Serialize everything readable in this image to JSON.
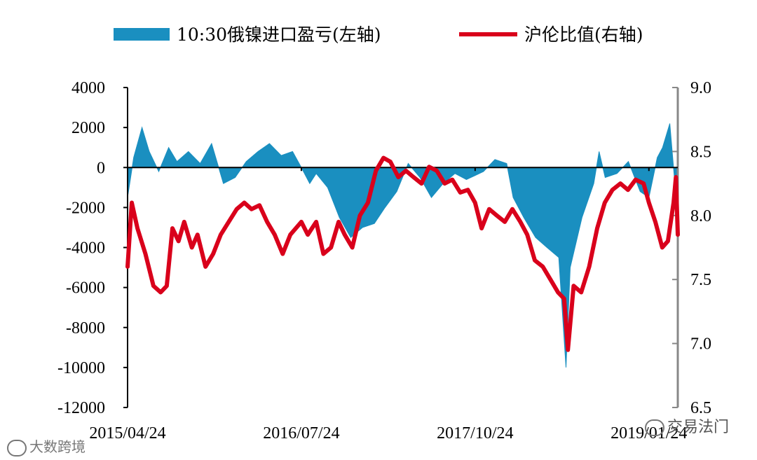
{
  "chart_data": {
    "type": "area+line",
    "x_tick_labels": [
      "2015/04/24",
      "2016/07/24",
      "2017/10/24",
      "2019/01/24"
    ],
    "y_left_ticks": [
      "4000",
      "2000",
      "0",
      "-2000",
      "-4000",
      "-6000",
      "-8000",
      "-10000",
      "-12000"
    ],
    "y_right_ticks": [
      "9.0",
      "8.5",
      "8.0",
      "7.5",
      "7.0",
      "6.5"
    ],
    "y_left_range": [
      -12000,
      4000
    ],
    "y_right_range": [
      6.5,
      9.0
    ],
    "x_range": [
      "2015/04/24",
      "2019/04/10"
    ],
    "legend_position": "top",
    "series": [
      {
        "name": "10:30俄镍进口盈亏(左轴)",
        "axis": "left",
        "style": "area",
        "color": "#1a8fc0",
        "points": [
          [
            "2015/04/24",
            -1500
          ],
          [
            "2015/05/10",
            500
          ],
          [
            "2015/06/01",
            2000
          ],
          [
            "2015/06/20",
            800
          ],
          [
            "2015/07/15",
            -200
          ],
          [
            "2015/08/10",
            1000
          ],
          [
            "2015/09/01",
            300
          ],
          [
            "2015/10/01",
            800
          ],
          [
            "2015/11/01",
            200
          ],
          [
            "2015/12/01",
            1200
          ],
          [
            "2016/01/01",
            -800
          ],
          [
            "2016/02/01",
            -500
          ],
          [
            "2016/03/01",
            300
          ],
          [
            "2016/04/01",
            800
          ],
          [
            "2016/05/01",
            1200
          ],
          [
            "2016/06/01",
            600
          ],
          [
            "2016/07/01",
            800
          ],
          [
            "2016/07/24",
            0
          ],
          [
            "2016/08/15",
            -800
          ],
          [
            "2016/09/01",
            -300
          ],
          [
            "2016/10/01",
            -1000
          ],
          [
            "2016/11/01",
            -2500
          ],
          [
            "2016/12/01",
            -3500
          ],
          [
            "2017/01/01",
            -3000
          ],
          [
            "2017/02/01",
            -2800
          ],
          [
            "2017/03/01",
            -2000
          ],
          [
            "2017/04/01",
            -1200
          ],
          [
            "2017/05/01",
            200
          ],
          [
            "2017/06/01",
            -500
          ],
          [
            "2017/07/01",
            -1500
          ],
          [
            "2017/08/01",
            -800
          ],
          [
            "2017/09/01",
            -300
          ],
          [
            "2017/10/01",
            -600
          ],
          [
            "2017/10/24",
            -400
          ],
          [
            "2017/11/15",
            -200
          ],
          [
            "2017/12/15",
            400
          ],
          [
            "2018/01/15",
            200
          ],
          [
            "2018/02/01",
            -1500
          ],
          [
            "2018/03/01",
            -2500
          ],
          [
            "2018/04/01",
            -3500
          ],
          [
            "2018/05/01",
            -4000
          ],
          [
            "2018/06/01",
            -4500
          ],
          [
            "2018/06/20",
            -10000
          ],
          [
            "2018/07/01",
            -5000
          ],
          [
            "2018/08/01",
            -2500
          ],
          [
            "2018/09/01",
            -800
          ],
          [
            "2018/09/15",
            800
          ],
          [
            "2018/10/01",
            -500
          ],
          [
            "2018/11/01",
            -300
          ],
          [
            "2018/12/01",
            300
          ],
          [
            "2019/01/01",
            -1200
          ],
          [
            "2019/01/24",
            -1500
          ],
          [
            "2019/02/15",
            500
          ],
          [
            "2019/03/01",
            1000
          ],
          [
            "2019/03/20",
            2200
          ],
          [
            "2019/04/01",
            -500
          ],
          [
            "2019/04/10",
            -2300
          ]
        ]
      },
      {
        "name": "沪伦比值(右轴)",
        "axis": "right",
        "style": "line",
        "color": "#d9001b",
        "points": [
          [
            "2015/04/24",
            7.6
          ],
          [
            "2015/05/05",
            8.1
          ],
          [
            "2015/05/20",
            7.9
          ],
          [
            "2015/06/10",
            7.7
          ],
          [
            "2015/07/01",
            7.45
          ],
          [
            "2015/07/20",
            7.4
          ],
          [
            "2015/08/05",
            7.45
          ],
          [
            "2015/08/20",
            7.9
          ],
          [
            "2015/09/05",
            7.8
          ],
          [
            "2015/09/20",
            7.95
          ],
          [
            "2015/10/10",
            7.75
          ],
          [
            "2015/10/25",
            7.85
          ],
          [
            "2015/11/15",
            7.6
          ],
          [
            "2015/12/05",
            7.7
          ],
          [
            "2015/12/25",
            7.85
          ],
          [
            "2016/01/15",
            7.95
          ],
          [
            "2016/02/05",
            8.05
          ],
          [
            "2016/02/25",
            8.1
          ],
          [
            "2016/03/15",
            8.05
          ],
          [
            "2016/04/05",
            8.08
          ],
          [
            "2016/04/25",
            7.95
          ],
          [
            "2016/05/15",
            7.85
          ],
          [
            "2016/06/05",
            7.7
          ],
          [
            "2016/06/25",
            7.85
          ],
          [
            "2016/07/24",
            7.95
          ],
          [
            "2016/08/10",
            7.85
          ],
          [
            "2016/09/01",
            7.95
          ],
          [
            "2016/09/20",
            7.7
          ],
          [
            "2016/10/10",
            7.75
          ],
          [
            "2016/10/30",
            7.95
          ],
          [
            "2016/11/15",
            7.85
          ],
          [
            "2016/12/05",
            7.75
          ],
          [
            "2016/12/25",
            8.0
          ],
          [
            "2017/01/15",
            8.1
          ],
          [
            "2017/02/05",
            8.35
          ],
          [
            "2017/02/25",
            8.45
          ],
          [
            "2017/03/15",
            8.42
          ],
          [
            "2017/04/05",
            8.3
          ],
          [
            "2017/04/25",
            8.35
          ],
          [
            "2017/05/15",
            8.3
          ],
          [
            "2017/06/05",
            8.25
          ],
          [
            "2017/06/25",
            8.38
          ],
          [
            "2017/07/15",
            8.35
          ],
          [
            "2017/08/05",
            8.25
          ],
          [
            "2017/08/25",
            8.28
          ],
          [
            "2017/09/15",
            8.18
          ],
          [
            "2017/10/05",
            8.2
          ],
          [
            "2017/10/24",
            8.1
          ],
          [
            "2017/11/10",
            7.9
          ],
          [
            "2017/11/30",
            8.05
          ],
          [
            "2017/12/20",
            8.0
          ],
          [
            "2018/01/10",
            7.95
          ],
          [
            "2018/01/30",
            8.05
          ],
          [
            "2018/02/20",
            7.95
          ],
          [
            "2018/03/10",
            7.85
          ],
          [
            "2018/03/30",
            7.65
          ],
          [
            "2018/04/20",
            7.6
          ],
          [
            "2018/05/10",
            7.5
          ],
          [
            "2018/05/30",
            7.4
          ],
          [
            "2018/06/15",
            7.35
          ],
          [
            "2018/06/25",
            6.95
          ],
          [
            "2018/07/10",
            7.45
          ],
          [
            "2018/07/30",
            7.4
          ],
          [
            "2018/08/20",
            7.6
          ],
          [
            "2018/09/10",
            7.9
          ],
          [
            "2018/09/30",
            8.1
          ],
          [
            "2018/10/20",
            8.2
          ],
          [
            "2018/11/10",
            8.25
          ],
          [
            "2018/11/30",
            8.2
          ],
          [
            "2018/12/20",
            8.28
          ],
          [
            "2019/01/10",
            8.25
          ],
          [
            "2019/01/24",
            8.1
          ],
          [
            "2019/02/10",
            7.95
          ],
          [
            "2019/02/28",
            7.75
          ],
          [
            "2019/03/15",
            7.8
          ],
          [
            "2019/03/30",
            8.1
          ],
          [
            "2019/04/05",
            8.3
          ],
          [
            "2019/04/10",
            7.85
          ]
        ]
      }
    ]
  },
  "watermarks": {
    "right": "交易法门",
    "left": "大数跨境"
  }
}
